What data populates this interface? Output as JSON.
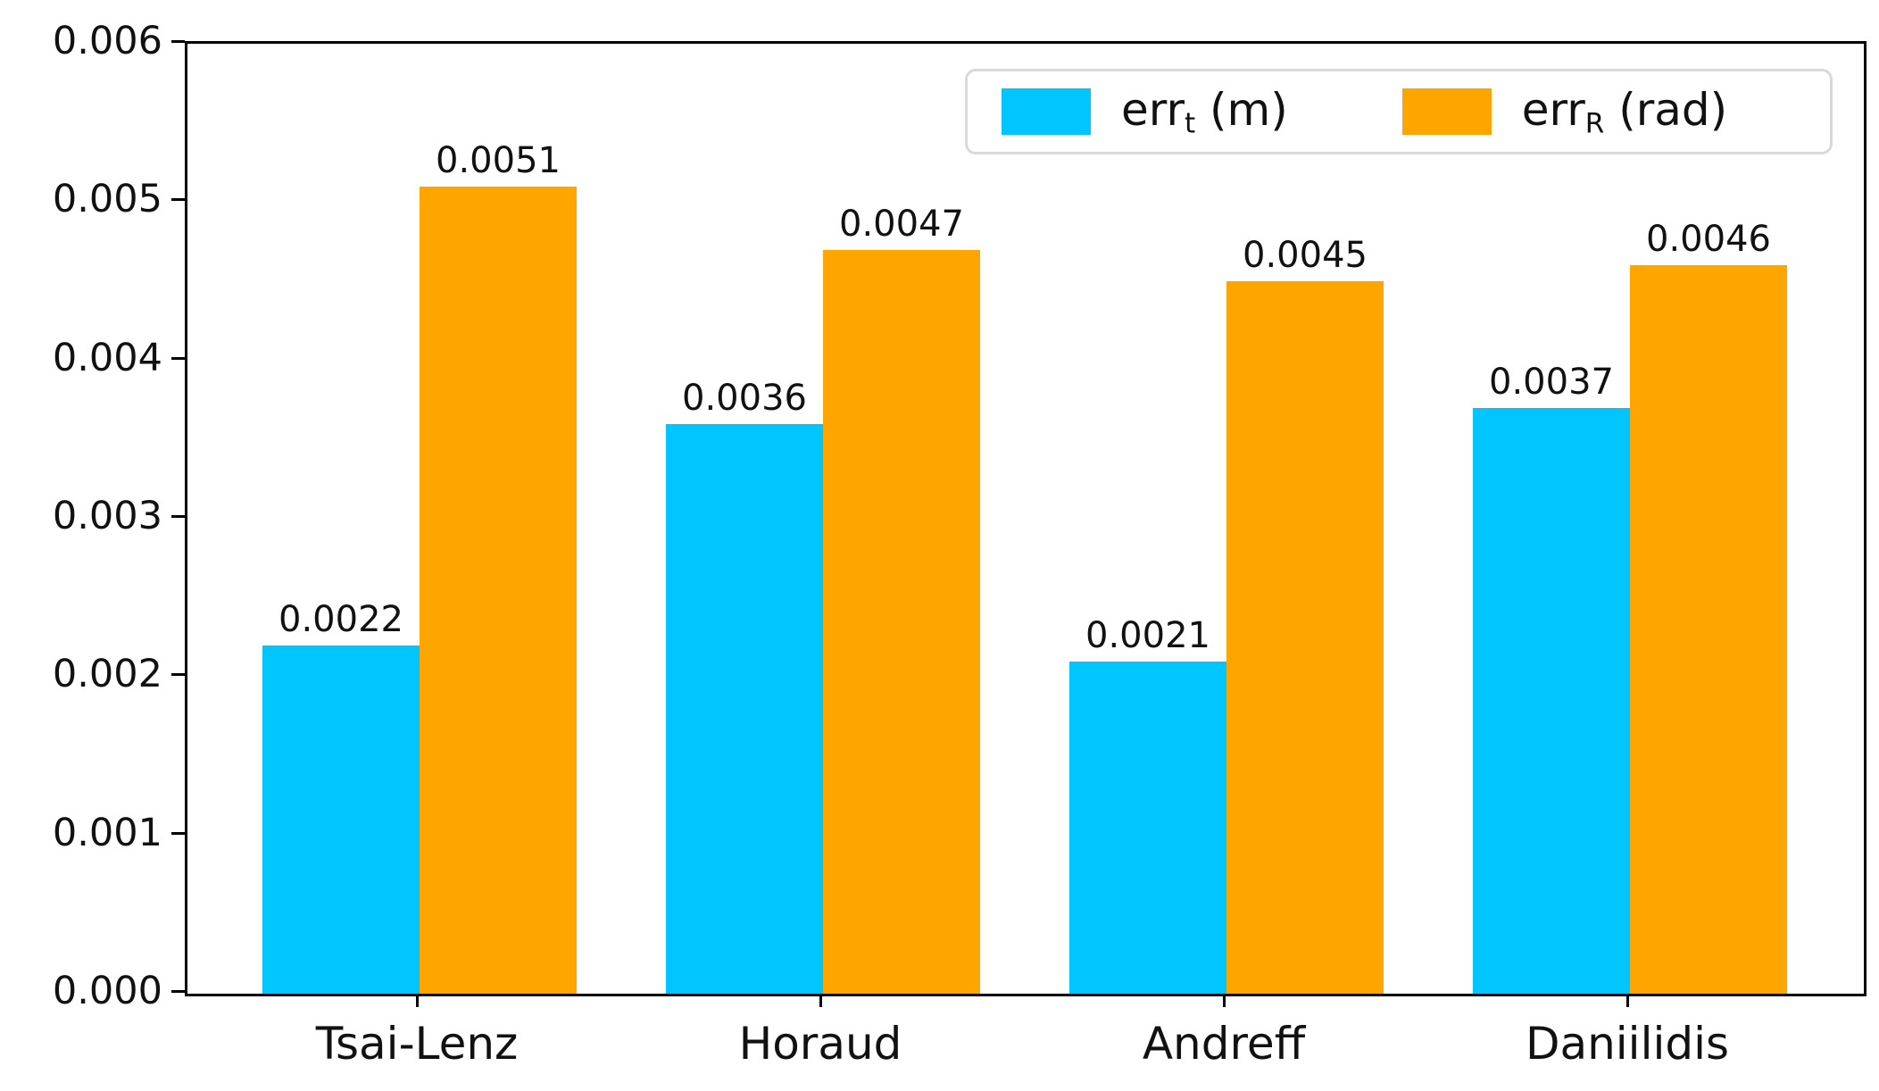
{
  "chart_data": {
    "type": "bar",
    "categories": [
      "Tsai-Lenz",
      "Horaud",
      "Andreff",
      "Daniilidis"
    ],
    "series": [
      {
        "name": "err_t (m)",
        "color": "#00C5FF",
        "values": [
          0.0022,
          0.0036,
          0.0021,
          0.0037
        ]
      },
      {
        "name": "err_R (rad)",
        "color": "#FFA500",
        "values": [
          0.0051,
          0.0047,
          0.0045,
          0.0046
        ]
      }
    ],
    "value_labels": [
      [
        "0.0022",
        "0.0036",
        "0.0021",
        "0.0037"
      ],
      [
        "0.0051",
        "0.0047",
        "0.0045",
        "0.0046"
      ]
    ],
    "title": "",
    "xlabel": "",
    "ylabel": "",
    "ylim": [
      0,
      0.006
    ],
    "yticks": [
      "0.000",
      "0.001",
      "0.002",
      "0.003",
      "0.004",
      "0.005",
      "0.006"
    ],
    "grid": false,
    "legend_position": "upper right"
  },
  "legend": {
    "items": [
      {
        "base": "err",
        "sub": "t",
        "rest": " (m)"
      },
      {
        "base": "err",
        "sub": "R",
        "rest": " (rad)"
      }
    ]
  },
  "colors": {
    "series1": "#00C5FF",
    "series2": "#FFA500",
    "spine": "#000000",
    "text": "#111111",
    "legend_border": "#d9d9d9",
    "background": "#ffffff"
  }
}
